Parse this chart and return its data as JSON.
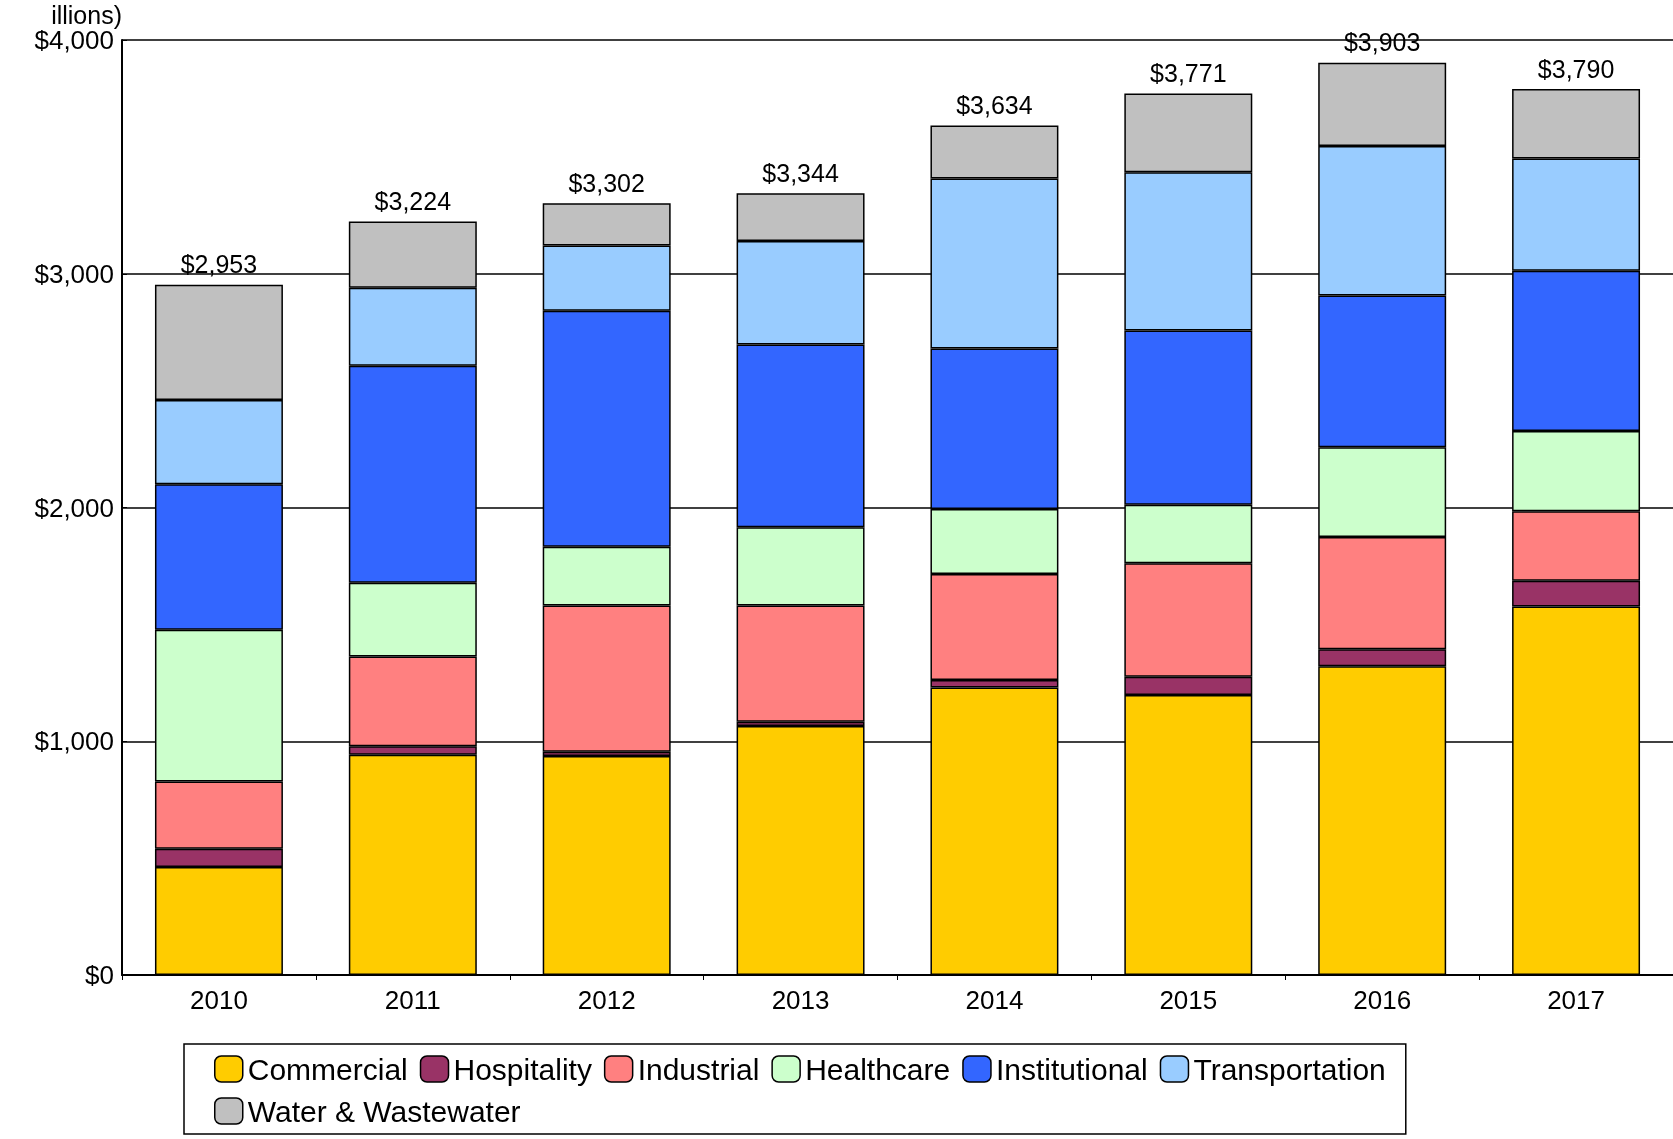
{
  "chart_data": {
    "type": "bar",
    "stacked": true,
    "ylabel": "illions)",
    "categories": [
      "2010",
      "2011",
      "2012",
      "2013",
      "2014",
      "2015",
      "2016",
      "2017"
    ],
    "series": [
      {
        "name": "Commercial",
        "color": "#ffcc00",
        "values": [
          462,
          942,
          937,
          1065,
          1230,
          1198,
          1321,
          1577
        ]
      },
      {
        "name": "Hospitality",
        "color": "#993366",
        "values": [
          78,
          37,
          18,
          18,
          32,
          78,
          73,
          110
        ]
      },
      {
        "name": "Industrial",
        "color": "#ff8080",
        "values": [
          288,
          384,
          626,
          498,
          453,
          485,
          480,
          297
        ]
      },
      {
        "name": "Healthcare",
        "color": "#ccffcc",
        "values": [
          649,
          315,
          251,
          334,
          279,
          251,
          384,
          343
        ]
      },
      {
        "name": "Institutional",
        "color": "#3366ff",
        "values": [
          622,
          928,
          1010,
          782,
          686,
          745,
          649,
          686
        ]
      },
      {
        "name": "Transportation",
        "color": "#99ccff",
        "values": [
          361,
          334,
          279,
          443,
          727,
          677,
          640,
          480
        ]
      },
      {
        "name": "Water & Wastewater",
        "color": "#c0c0c0",
        "values": [
          493,
          284,
          181,
          204,
          227,
          337,
          356,
          297
        ]
      }
    ],
    "totals": [
      "$2,953",
      "$3,224",
      "$3,302",
      "$3,344",
      "$3,634",
      "$3,771",
      "$3,903",
      "$3,790"
    ],
    "ylim": [
      0,
      4000
    ],
    "yticks": [
      {
        "value": 0,
        "label": "$0"
      },
      {
        "value": 1000,
        "label": "$1,000"
      },
      {
        "value": 2000,
        "label": "$2,000"
      },
      {
        "value": 3000,
        "label": "$3,000"
      },
      {
        "value": 4000,
        "label": "$4,000"
      }
    ],
    "grid": "y",
    "legend": "bottom"
  }
}
